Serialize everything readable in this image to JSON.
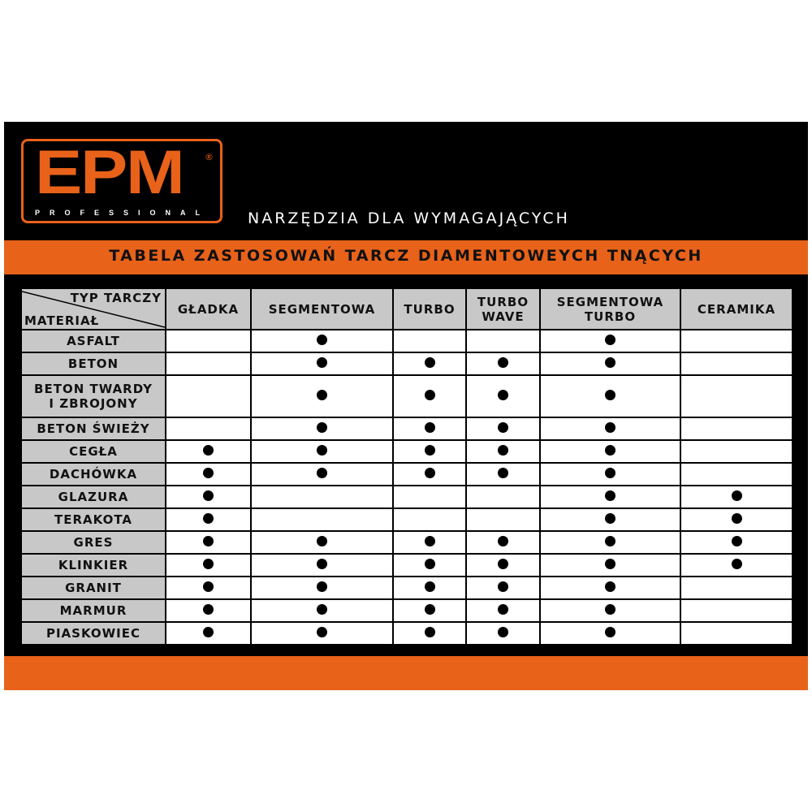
{
  "logo": {
    "text": "EPM",
    "registered": "®",
    "subtitle": "PROFESSIONAL"
  },
  "slogan": "NARZĘDZIA DLA WYMAGAJĄCYCH",
  "title": "TABELA ZASTOSOWAŃ TARCZ DIAMENTOWEYCH TNĄCYCH",
  "colors": {
    "accent": "#e8621a",
    "background": "#000000",
    "header": "#c8c8c8"
  },
  "table": {
    "corner_top": "TYP TARCZY",
    "corner_bottom": "MATERIAŁ",
    "columns": [
      [
        "GŁADKA"
      ],
      [
        "SEGMENTOWA"
      ],
      [
        "TURBO"
      ],
      [
        "TURBO",
        "WAVE"
      ],
      [
        "SEGMENTOWA",
        "TURBO"
      ],
      [
        "CERAMIKA"
      ]
    ],
    "rows": [
      {
        "material": [
          "ASFALT"
        ],
        "marks": [
          0,
          1,
          0,
          0,
          1,
          0
        ]
      },
      {
        "material": [
          "BETON"
        ],
        "marks": [
          0,
          1,
          1,
          1,
          1,
          0
        ]
      },
      {
        "material": [
          "BETON TWARDY",
          "I ZBROJONY"
        ],
        "marks": [
          0,
          1,
          1,
          1,
          1,
          0
        ]
      },
      {
        "material": [
          "BETON ŚWIEŻY"
        ],
        "marks": [
          0,
          1,
          1,
          1,
          1,
          0
        ]
      },
      {
        "material": [
          "CEGŁA"
        ],
        "marks": [
          1,
          1,
          1,
          1,
          1,
          0
        ]
      },
      {
        "material": [
          "DACHÓWKA"
        ],
        "marks": [
          1,
          1,
          1,
          1,
          1,
          0
        ]
      },
      {
        "material": [
          "GLAZURA"
        ],
        "marks": [
          1,
          0,
          0,
          0,
          1,
          1
        ]
      },
      {
        "material": [
          "TERAKOTA"
        ],
        "marks": [
          1,
          0,
          0,
          0,
          1,
          1
        ]
      },
      {
        "material": [
          "GRES"
        ],
        "marks": [
          1,
          1,
          1,
          1,
          1,
          1
        ]
      },
      {
        "material": [
          "KLINKIER"
        ],
        "marks": [
          1,
          1,
          1,
          1,
          1,
          1
        ]
      },
      {
        "material": [
          "GRANIT"
        ],
        "marks": [
          1,
          1,
          1,
          1,
          1,
          0
        ]
      },
      {
        "material": [
          "MARMUR"
        ],
        "marks": [
          1,
          1,
          1,
          1,
          1,
          0
        ]
      },
      {
        "material": [
          "PIASKOWIEC"
        ],
        "marks": [
          1,
          1,
          1,
          1,
          1,
          0
        ]
      }
    ]
  }
}
